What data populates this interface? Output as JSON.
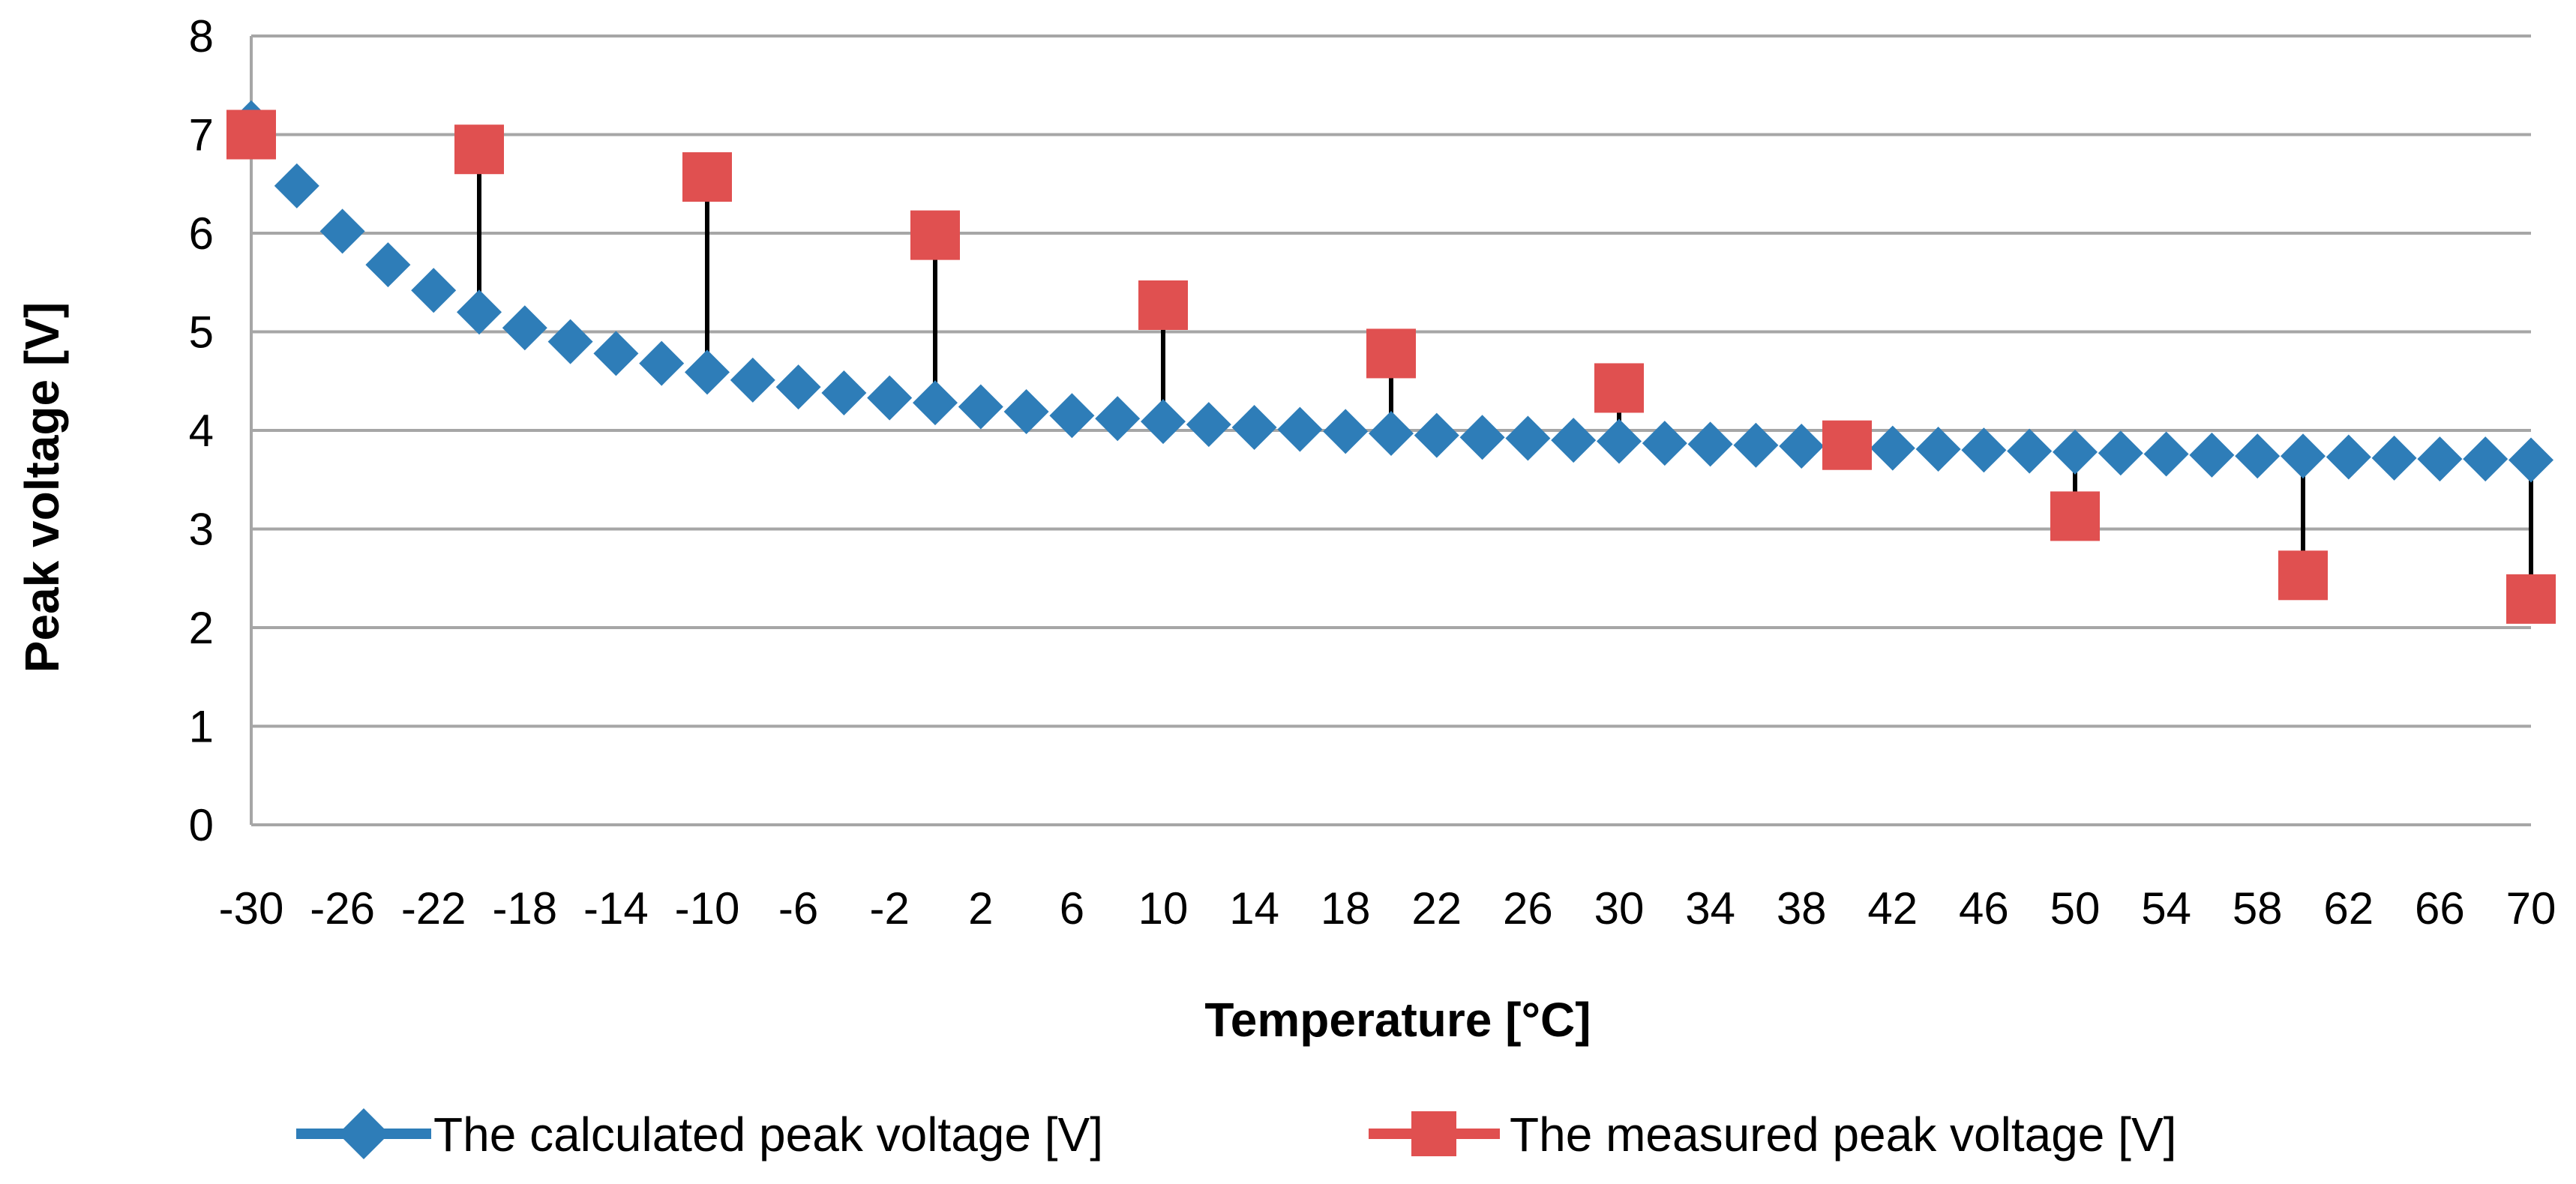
{
  "chart_data": {
    "type": "line",
    "title": "",
    "xlabel": "Temperature [°C]",
    "ylabel": "Peak voltage [V]",
    "xlim": [
      -30,
      70
    ],
    "ylim": [
      0,
      8
    ],
    "grid": true,
    "legend_position": "bottom",
    "x_ticks": [
      -30,
      -26,
      -22,
      -18,
      -14,
      -10,
      -6,
      -2,
      2,
      6,
      10,
      14,
      18,
      22,
      26,
      30,
      34,
      38,
      42,
      46,
      50,
      54,
      58,
      62,
      66,
      70
    ],
    "y_ticks": [
      0,
      1,
      2,
      3,
      4,
      5,
      6,
      7,
      8
    ],
    "series": [
      {
        "name": "The calculated peak voltage [V]",
        "color": "#2E7DB8",
        "marker": "diamond",
        "x": [
          -30,
          -28,
          -26,
          -24,
          -22,
          -20,
          -18,
          -16,
          -14,
          -12,
          -10,
          -8,
          -6,
          -4,
          -2,
          0,
          2,
          4,
          6,
          8,
          10,
          12,
          14,
          16,
          18,
          20,
          22,
          24,
          26,
          28,
          30,
          32,
          34,
          36,
          38,
          40,
          42,
          44,
          46,
          48,
          50,
          52,
          54,
          56,
          58,
          60,
          62,
          64,
          66,
          68,
          70
        ],
        "values": [
          7.12,
          6.48,
          6.02,
          5.68,
          5.42,
          5.2,
          5.04,
          4.9,
          4.78,
          4.68,
          4.59,
          4.51,
          4.44,
          4.38,
          4.33,
          4.28,
          4.24,
          4.19,
          4.15,
          4.12,
          4.09,
          4.06,
          4.03,
          4.01,
          3.99,
          3.97,
          3.95,
          3.93,
          3.92,
          3.9,
          3.89,
          3.87,
          3.86,
          3.85,
          3.84,
          3.83,
          3.82,
          3.81,
          3.8,
          3.79,
          3.78,
          3.77,
          3.76,
          3.75,
          3.74,
          3.74,
          3.73,
          3.72,
          3.71,
          3.71,
          3.7
        ]
      },
      {
        "name": "The measured peak voltage [V]",
        "color": "#E05050",
        "marker": "square",
        "x": [
          -30,
          -20,
          -10,
          0,
          10,
          20,
          30,
          40,
          50,
          60,
          70
        ],
        "values": [
          7.0,
          6.85,
          6.57,
          5.98,
          5.27,
          4.78,
          4.43,
          3.85,
          3.13,
          2.53,
          2.29
        ]
      }
    ],
    "error_lines": {
      "color": "#000000",
      "description": "vertical lines connecting measured to calculated value at each measured x"
    }
  }
}
